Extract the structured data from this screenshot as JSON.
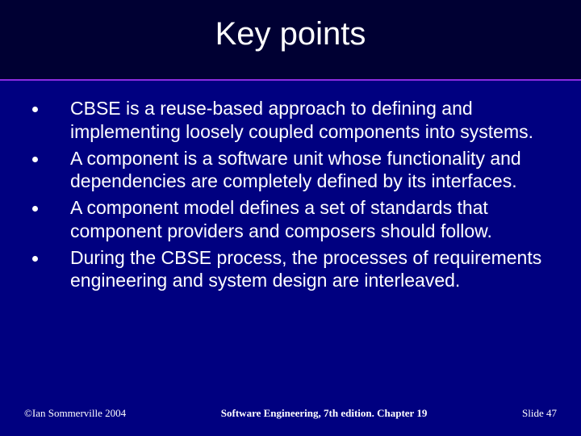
{
  "slide": {
    "title": "Key points",
    "bullets": [
      "CBSE is a reuse-based approach to defining and implementing loosely coupled components into systems.",
      "A component is a software unit whose functionality and dependencies are completely defined by its interfaces.",
      "A component model defines a set of standards that component providers and composers should follow.",
      "During the CBSE process, the processes of requirements engineering and system design are interleaved."
    ],
    "footer": {
      "left": "©Ian Sommerville 2004",
      "center": "Software Engineering, 7th edition. Chapter 19",
      "right_prefix": "Slide ",
      "slide_number": "47"
    },
    "colors": {
      "background": "#000080",
      "top_band": "#000033",
      "divider": "#8a2be2",
      "text": "#ffffff"
    },
    "typography": {
      "title_fontsize": 40,
      "bullet_fontsize": 23,
      "footer_fontsize": 13
    }
  }
}
